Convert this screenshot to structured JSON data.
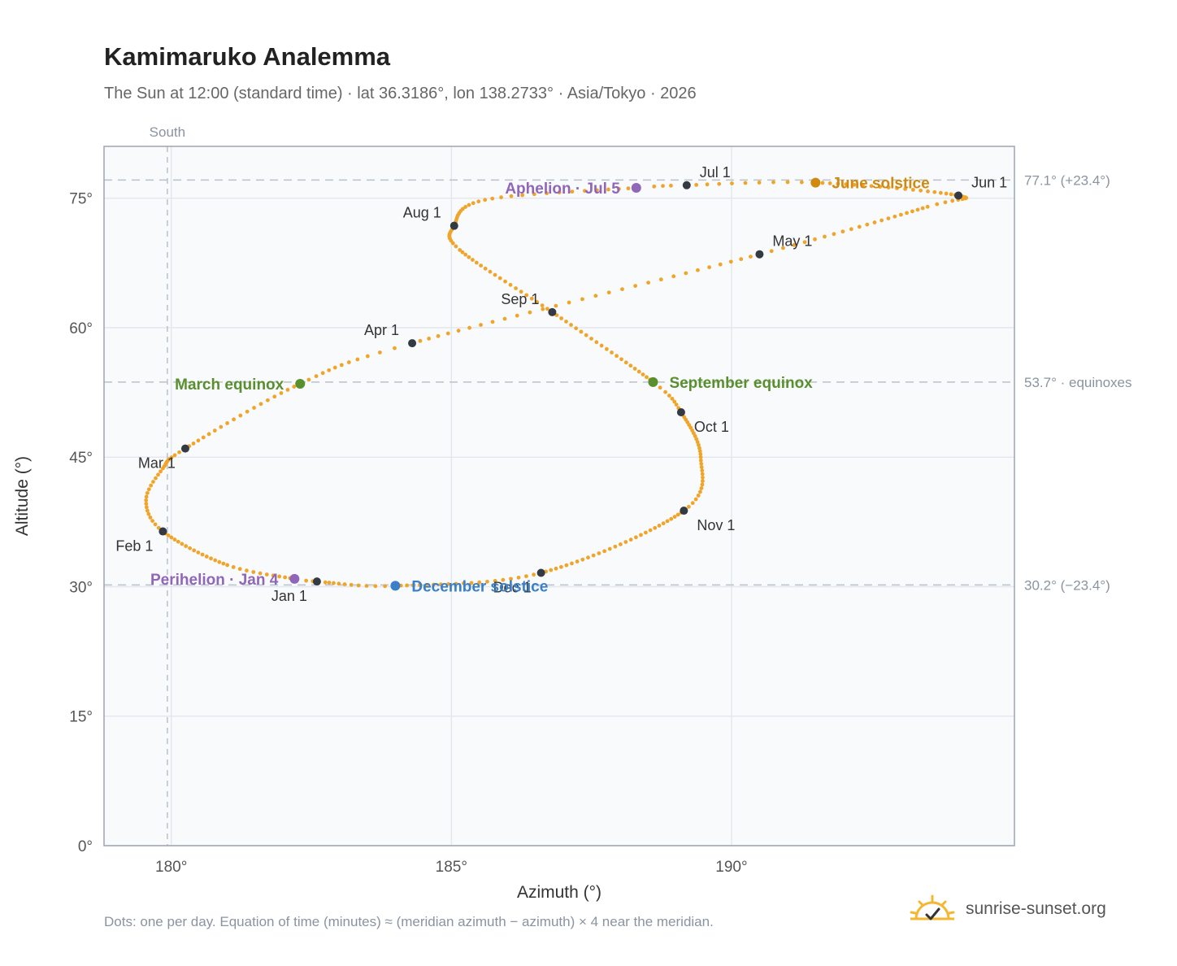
{
  "title": "Kamimaruko Analemma",
  "subtitle": "The Sun at 12:00 (standard time) · lat 36.3186°, lon 138.2733° · Asia/Tokyo · 2026",
  "footnote": "Dots: one per day. Equation of time (minutes) ≈ (meridian azimuth − azimuth) × 4 near the meridian.",
  "brand": {
    "name": "sunrise-sunset.org",
    "icon": "sun-logo-icon"
  },
  "chart_data": {
    "type": "scatter",
    "xlabel": "Azimuth (°)",
    "ylabel": "Altitude (°)",
    "xlim": [
      178.8,
      195.05
    ],
    "ylim": [
      0,
      81
    ],
    "xticks": [
      180,
      185,
      190
    ],
    "yticks": [
      0,
      15,
      30,
      45,
      60,
      75
    ],
    "x_tick_labels": [
      "180°",
      "185°",
      "190°"
    ],
    "y_tick_labels": [
      "0°",
      "15°",
      "30°",
      "45°",
      "60°",
      "75°"
    ],
    "grid": true,
    "south_line": {
      "azimuth": 179.93,
      "label": "South"
    },
    "reference_lines": [
      {
        "altitude": 77.1,
        "label": "77.1° (+23.4°)"
      },
      {
        "altitude": 53.7,
        "label": "53.7° · equinoxes"
      },
      {
        "altitude": 30.2,
        "label": "30.2° (−23.4°)"
      }
    ],
    "path_color": "#f0a52a",
    "path_keypoints": [
      {
        "day": 1,
        "az": 182.6,
        "alt": 30.6
      },
      {
        "day": 4,
        "az": 182.2,
        "alt": 30.9
      },
      {
        "day": 15,
        "az": 181.0,
        "alt": 32.5
      },
      {
        "day": 32,
        "az": 179.85,
        "alt": 36.4
      },
      {
        "day": 41,
        "az": 179.55,
        "alt": 40.0
      },
      {
        "day": 50,
        "az": 179.85,
        "alt": 43.7
      },
      {
        "day": 60,
        "az": 180.25,
        "alt": 46.0
      },
      {
        "day": 79,
        "az": 182.3,
        "alt": 53.5
      },
      {
        "day": 91,
        "az": 184.3,
        "alt": 58.2
      },
      {
        "day": 121,
        "az": 190.5,
        "alt": 68.5
      },
      {
        "day": 142,
        "az": 193.5,
        "alt": 74.0
      },
      {
        "day": 152,
        "az": 194.05,
        "alt": 75.3
      },
      {
        "day": 172,
        "az": 191.5,
        "alt": 76.8
      },
      {
        "day": 182,
        "az": 189.2,
        "alt": 76.5
      },
      {
        "day": 186,
        "az": 188.3,
        "alt": 76.2
      },
      {
        "day": 200,
        "az": 185.6,
        "alt": 74.8
      },
      {
        "day": 213,
        "az": 185.05,
        "alt": 71.8
      },
      {
        "day": 224,
        "az": 185.15,
        "alt": 69.0
      },
      {
        "day": 244,
        "az": 186.8,
        "alt": 61.8
      },
      {
        "day": 266,
        "az": 188.6,
        "alt": 53.7
      },
      {
        "day": 274,
        "az": 189.1,
        "alt": 50.2
      },
      {
        "day": 290,
        "az": 189.45,
        "alt": 45.0
      },
      {
        "day": 305,
        "az": 189.15,
        "alt": 38.8
      },
      {
        "day": 335,
        "az": 186.6,
        "alt": 31.6
      },
      {
        "day": 355,
        "az": 184.0,
        "alt": 30.1
      },
      {
        "day": 365,
        "az": 182.75,
        "alt": 30.5
      }
    ],
    "month_markers": [
      {
        "label": "Jan 1",
        "az": 182.6,
        "alt": 30.6,
        "pos": "below-left"
      },
      {
        "label": "Feb 1",
        "az": 179.85,
        "alt": 36.4,
        "pos": "below-left"
      },
      {
        "label": "Mar 1",
        "az": 180.25,
        "alt": 46.0,
        "pos": "below-left"
      },
      {
        "label": "Apr 1",
        "az": 184.3,
        "alt": 58.2,
        "pos": "above-left"
      },
      {
        "label": "May 1",
        "az": 190.5,
        "alt": 68.5,
        "pos": "above-right"
      },
      {
        "label": "Jun 1",
        "az": 194.05,
        "alt": 75.3,
        "pos": "above-right"
      },
      {
        "label": "Jul 1",
        "az": 189.2,
        "alt": 76.5,
        "pos": "above-right"
      },
      {
        "label": "Aug 1",
        "az": 185.05,
        "alt": 71.8,
        "pos": "above-left"
      },
      {
        "label": "Sep 1",
        "az": 186.8,
        "alt": 61.8,
        "pos": "above-left"
      },
      {
        "label": "Oct 1",
        "az": 189.1,
        "alt": 50.2,
        "pos": "below-right"
      },
      {
        "label": "Nov 1",
        "az": 189.15,
        "alt": 38.8,
        "pos": "below-right"
      },
      {
        "label": "Dec 1",
        "az": 186.6,
        "alt": 31.6,
        "pos": "below-left"
      }
    ],
    "events": [
      {
        "label": "March equinox",
        "az": 182.3,
        "alt": 53.5,
        "color": "#5a8f2e",
        "pos": "left"
      },
      {
        "label": "September equinox",
        "az": 188.6,
        "alt": 53.7,
        "color": "#5a8f2e",
        "pos": "right"
      },
      {
        "label": "June solstice",
        "az": 191.5,
        "alt": 76.8,
        "color": "#d08a10",
        "pos": "right"
      },
      {
        "label": "December solstice",
        "az": 184.0,
        "alt": 30.1,
        "color": "#3a7fc8",
        "pos": "right"
      },
      {
        "label": "Aphelion · Jul 5",
        "az": 188.3,
        "alt": 76.2,
        "color": "#9066b8",
        "pos": "left"
      },
      {
        "label": "Perihelion · Jan 4",
        "az": 182.2,
        "alt": 30.9,
        "color": "#9066b8",
        "pos": "left"
      }
    ]
  }
}
